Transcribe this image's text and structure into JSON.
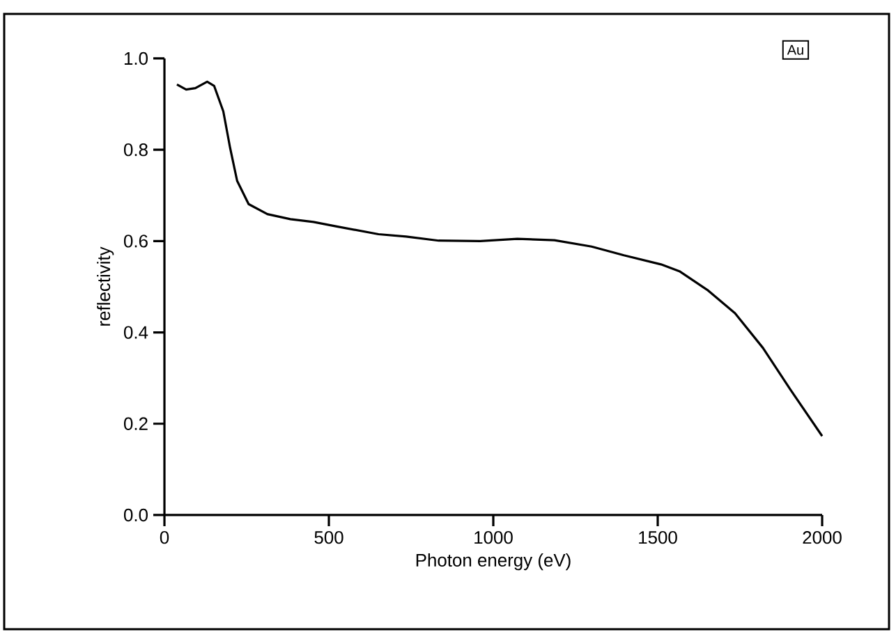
{
  "chart_data": {
    "type": "line",
    "xlabel": "Photon energy (eV)",
    "ylabel": "reflectivity",
    "annotations": [
      "Au"
    ],
    "xlim": [
      0,
      2000
    ],
    "ylim": [
      0,
      1.0
    ],
    "xticks": [
      0,
      500,
      1000,
      1500,
      2000
    ],
    "yticks": [
      {
        "value": 0,
        "label": "0.0"
      },
      0.2,
      0.4,
      0.6,
      0.8,
      {
        "value": 1.0,
        "label": "1.0"
      }
    ],
    "line_style": "solid",
    "series": [
      {
        "color": "#000000",
        "x": [
          38,
          66,
          94,
          130,
          151,
          179,
          200,
          221,
          256,
          313,
          383,
          453,
          524,
          651,
          735,
          834,
          960,
          1073,
          1186,
          1299,
          1397,
          1510,
          1566,
          1651,
          1735,
          1820,
          1904,
          2000
        ],
        "values": [
          0.943,
          0.932,
          0.935,
          0.949,
          0.94,
          0.884,
          0.803,
          0.732,
          0.681,
          0.659,
          0.648,
          0.642,
          0.632,
          0.615,
          0.61,
          0.601,
          0.6,
          0.605,
          0.602,
          0.588,
          0.569,
          0.549,
          0.534,
          0.493,
          0.442,
          0.366,
          0.274,
          0.173
        ]
      }
    ]
  }
}
